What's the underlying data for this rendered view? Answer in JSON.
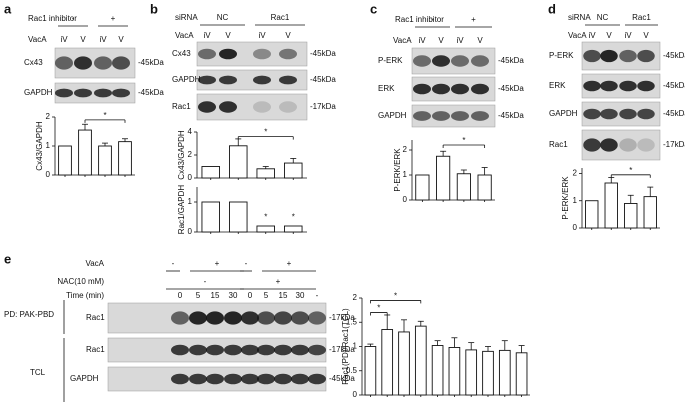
{
  "panels": {
    "a": {
      "label": "a",
      "treatment": "Rac1 inhibitor",
      "treatment_levels": [
        "-",
        "+"
      ],
      "vaca": "VacA",
      "lanes": [
        "iV",
        "V",
        "iV",
        "V"
      ],
      "blots": [
        {
          "name": "Cx43",
          "size": "-45kDa"
        },
        {
          "name": "GAPDH",
          "size": "-45kDa"
        }
      ]
    },
    "b": {
      "label": "b",
      "treatment": "siRNA",
      "treatment_levels": [
        "NC",
        "Rac1"
      ],
      "vaca": "VacA",
      "lanes": [
        "iV",
        "V",
        "iV",
        "V"
      ],
      "blots": [
        {
          "name": "Cx43",
          "size": "-45kDa"
        },
        {
          "name": "GAPDH",
          "size": "-45kDa"
        },
        {
          "name": "Rac1",
          "size": "-17kDa"
        }
      ]
    },
    "c": {
      "label": "c",
      "treatment": "Rac1 inhibitor",
      "treatment_levels": [
        "-",
        "+"
      ],
      "vaca": "VacA",
      "lanes": [
        "iV",
        "V",
        "iV",
        "V"
      ],
      "blots": [
        {
          "name": "P-ERK",
          "size": "-45kDa"
        },
        {
          "name": "ERK",
          "size": "-45kDa"
        },
        {
          "name": "GAPDH",
          "size": "-45kDa"
        }
      ]
    },
    "d": {
      "label": "d",
      "treatment": "siRNA",
      "treatment_levels": [
        "NC",
        "Rac1"
      ],
      "vaca": "VacA",
      "lanes": [
        "iV",
        "V",
        "iV",
        "V"
      ],
      "blots": [
        {
          "name": "P-ERK",
          "size": "-45kDa"
        },
        {
          "name": "ERK",
          "size": "-45kDa"
        },
        {
          "name": "GAPDH",
          "size": "-45kDa"
        },
        {
          "name": "Rac1",
          "size": "-17kDa"
        }
      ]
    },
    "e": {
      "label": "e",
      "vaca": "VacA",
      "vaca_levels": [
        "-",
        "+",
        "-",
        "+"
      ],
      "nac": "NAC(10 mM)",
      "nac_levels": [
        "-",
        "+"
      ],
      "time": "Time (min)",
      "times": [
        "0",
        "5",
        "15",
        "30",
        "0",
        "5",
        "15",
        "30",
        "-"
      ],
      "pd": "PD: PAK-PBD",
      "tcl": "TCL",
      "blots": [
        {
          "name": "Rac1",
          "size": "-17kDa"
        },
        {
          "name": "Rac1",
          "size": "-17kDa"
        },
        {
          "name": "GAPDH",
          "size": "-45kDa"
        }
      ]
    }
  },
  "chart_data": [
    {
      "type": "bar",
      "ylabel": "Cx43/GAPDH",
      "values": [
        1,
        1.55,
        1.0,
        1.15
      ],
      "errors": [
        0,
        0.2,
        0.1,
        0.1
      ],
      "color": "#ffffff",
      "edge": "#111111",
      "ylim": [
        0,
        2
      ],
      "yticks": [
        0,
        1,
        2
      ],
      "annotations": [
        "*"
      ]
    },
    {
      "type": "bar",
      "ylabel": "Cx43/GAPDH",
      "values": [
        1,
        2.8,
        0.8,
        1.3
      ],
      "errors": [
        0,
        0.6,
        0.2,
        0.4
      ],
      "color": "#ffffff",
      "edge": "#111111",
      "ylim": [
        0,
        4
      ],
      "yticks": [
        0,
        2,
        4
      ],
      "annotations": [
        "*"
      ]
    },
    {
      "type": "bar",
      "ylabel": "Rac1/GAPDH",
      "values": [
        1,
        1,
        0.2,
        0.2
      ],
      "errors": [
        0,
        0,
        0,
        0
      ],
      "color": "#ffffff",
      "edge": "#111111",
      "ylim": [
        0,
        1.5
      ],
      "yticks": [
        0,
        1
      ],
      "annotations": [
        "*",
        "*"
      ]
    },
    {
      "type": "bar",
      "ylabel": "P-ERK/ERK",
      "values": [
        1,
        1.75,
        1.05,
        1.0
      ],
      "errors": [
        0,
        0.2,
        0.15,
        0.3
      ],
      "color": "#ffffff",
      "edge": "#111111",
      "ylim": [
        0,
        2.4
      ],
      "yticks": [
        0,
        1,
        2
      ],
      "annotations": [
        "*"
      ]
    },
    {
      "type": "bar",
      "ylabel": "P-ERK/ERK",
      "values": [
        1,
        1.65,
        0.9,
        1.15
      ],
      "errors": [
        0,
        0.2,
        0.3,
        0.35
      ],
      "color": "#ffffff",
      "edge": "#111111",
      "ylim": [
        0,
        2.2
      ],
      "yticks": [
        0,
        1,
        2
      ],
      "annotations": [
        "*"
      ]
    },
    {
      "type": "bar",
      "ylabel": "Rac1(PD)/Rac1(TCL)",
      "values": [
        1,
        1.35,
        1.3,
        1.42,
        1.02,
        0.98,
        0.93,
        0.9,
        0.92,
        0.87
      ],
      "errors": [
        0.05,
        0.3,
        0.25,
        0.1,
        0.1,
        0.2,
        0.15,
        0.1,
        0.2,
        0.15
      ],
      "color": "#ffffff",
      "edge": "#111111",
      "ylim": [
        0,
        2
      ],
      "yticks": [
        0,
        0.5,
        1,
        1.5,
        2
      ],
      "annotations": [
        "*",
        "*"
      ]
    }
  ]
}
